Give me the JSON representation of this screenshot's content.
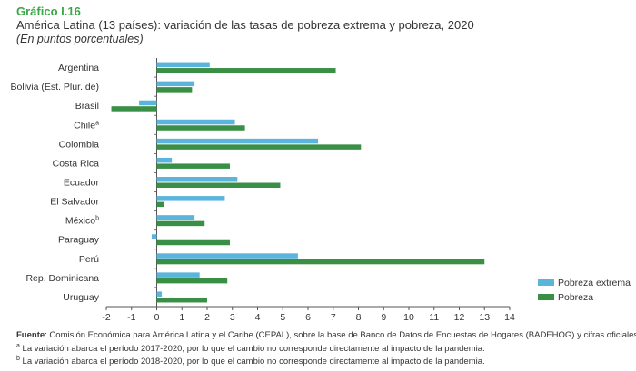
{
  "header": {
    "label": "Gráfico I.16",
    "title": "América Latina (13 países): variación de las tasas de pobreza extrema y pobreza, 2020",
    "subtitle": "(En puntos porcentuales)"
  },
  "colors": {
    "extreme": "#5bb4dc",
    "poverty": "#3a8f46",
    "axis": "#555555"
  },
  "chart_data": {
    "type": "bar",
    "orientation": "horizontal",
    "categories": [
      "Argentina",
      "Bolivia (Est. Plur. de)",
      "Brasil",
      "Chile",
      "Colombia",
      "Costa Rica",
      "Ecuador",
      "El Salvador",
      "México",
      "Paraguay",
      "Perú",
      "Rep. Dominicana",
      "Uruguay"
    ],
    "category_marks": [
      "",
      "",
      "",
      "a",
      "",
      "",
      "",
      "",
      "b",
      "",
      "",
      "",
      ""
    ],
    "series": [
      {
        "name": "Pobreza extrema",
        "values": [
          2.1,
          1.5,
          -0.7,
          3.1,
          6.4,
          0.6,
          3.2,
          2.7,
          1.5,
          -0.2,
          5.6,
          1.7,
          0.2
        ]
      },
      {
        "name": "Pobreza",
        "values": [
          7.1,
          1.4,
          -1.8,
          3.5,
          8.1,
          2.9,
          4.9,
          0.3,
          1.9,
          2.9,
          13.0,
          2.8,
          2.0
        ]
      }
    ],
    "xlim": [
      -2,
      14
    ],
    "xticks": [
      -2,
      -1,
      0,
      1,
      2,
      3,
      4,
      5,
      6,
      7,
      8,
      9,
      10,
      11,
      12,
      13,
      14
    ],
    "grid": false,
    "legend_position": "bottom-right"
  },
  "footer": {
    "source_label": "Fuente",
    "source_text": ": Comisión Económica para América Latina y el Caribe (CEPAL), sobre la base de Banco de Datos de Encuestas de Hogares (BADEHOG) y cifras oficiales.",
    "note_a_mark": "a",
    "note_a": " La variación abarca el período 2017-2020, por lo que el cambio no corresponde directamente al impacto de la pandemia.",
    "note_b_mark": "b",
    "note_b": " La variación abarca el período 2018-2020, por lo que el cambio no corresponde directamente al impacto de la pandemia."
  }
}
